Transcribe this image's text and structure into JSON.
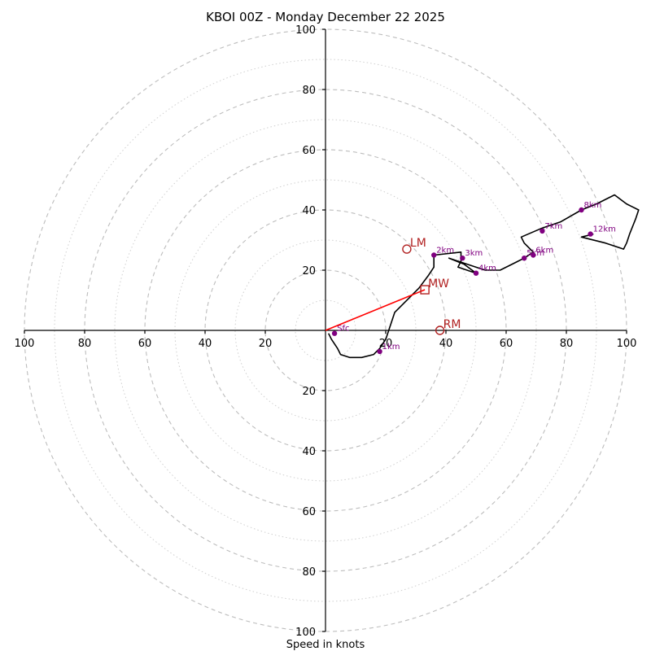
{
  "chart_data": {
    "type": "hodograph",
    "title": "KBOI 00Z - Monday December 22 2025",
    "xlabel": "Speed in knots",
    "range": [
      -100,
      100
    ],
    "major_rings": [
      20,
      40,
      60,
      80,
      100
    ],
    "minor_rings": [
      10,
      30,
      50,
      70,
      90
    ],
    "x_tick_labels": [
      "100",
      "80",
      "60",
      "40",
      "20",
      "20",
      "40",
      "60",
      "80",
      "100"
    ],
    "x_tick_values": [
      -100,
      -80,
      -60,
      -40,
      -20,
      20,
      40,
      60,
      80,
      100
    ],
    "y_tick_labels": [
      "100",
      "80",
      "60",
      "40",
      "20",
      "20",
      "40",
      "60",
      "80",
      "100"
    ],
    "y_tick_values": [
      100,
      80,
      60,
      40,
      20,
      -20,
      -40,
      -60,
      -80,
      -100
    ],
    "hodograph_line": [
      [
        1,
        -1
      ],
      [
        2,
        -3
      ],
      [
        4,
        -6
      ],
      [
        5,
        -8
      ],
      [
        8,
        -9
      ],
      [
        12,
        -9
      ],
      [
        16,
        -8
      ],
      [
        18,
        -6
      ],
      [
        20,
        -3
      ],
      [
        21,
        0
      ],
      [
        22,
        3
      ],
      [
        23,
        6
      ],
      [
        25,
        8
      ],
      [
        28,
        11
      ],
      [
        31,
        14
      ],
      [
        34,
        18
      ],
      [
        36,
        21
      ],
      [
        36,
        22
      ],
      [
        36,
        25
      ],
      [
        45,
        26
      ],
      [
        45,
        23
      ],
      [
        44,
        21
      ],
      [
        50,
        19
      ],
      [
        46,
        22
      ],
      [
        41,
        24
      ],
      [
        53,
        20
      ],
      [
        58,
        20
      ],
      [
        62,
        22
      ],
      [
        66,
        24
      ],
      [
        69,
        26
      ],
      [
        66,
        29
      ],
      [
        65,
        31
      ],
      [
        72,
        34
      ],
      [
        78,
        36
      ],
      [
        85,
        40
      ],
      [
        90,
        42
      ],
      [
        96,
        45
      ],
      [
        100,
        42
      ],
      [
        102,
        41
      ],
      [
        104,
        40
      ],
      [
        103,
        37
      ],
      [
        101,
        32
      ],
      [
        100,
        29
      ],
      [
        99,
        27
      ],
      [
        93,
        29
      ],
      [
        85,
        31
      ],
      [
        89,
        32
      ]
    ],
    "height_points": [
      {
        "label": "Sfc",
        "u": 3,
        "v": -1
      },
      {
        "label": "1km",
        "u": 18,
        "v": -7
      },
      {
        "label": "2km",
        "u": 36,
        "v": 25
      },
      {
        "label": "3km",
        "u": 45.5,
        "v": 24
      },
      {
        "label": "4km",
        "u": 50,
        "v": 19
      },
      {
        "label": "5km",
        "u": 66,
        "v": 24
      },
      {
        "label": "6km",
        "u": 69,
        "v": 25
      },
      {
        "label": "7km",
        "u": 72,
        "v": 33
      },
      {
        "label": "8km",
        "u": 85,
        "v": 40
      },
      {
        "label": "12km",
        "u": 88,
        "v": 32
      }
    ],
    "storm_motion": [
      {
        "label": "LM",
        "u": 27,
        "v": 27,
        "marker": "circle"
      },
      {
        "label": "MW",
        "u": 33,
        "v": 13.5,
        "marker": "square"
      },
      {
        "label": "RM",
        "u": 38,
        "v": 0,
        "marker": "circle"
      }
    ],
    "mean_wind_vector": {
      "from": [
        0,
        0
      ],
      "to": [
        33,
        13.5
      ]
    }
  }
}
